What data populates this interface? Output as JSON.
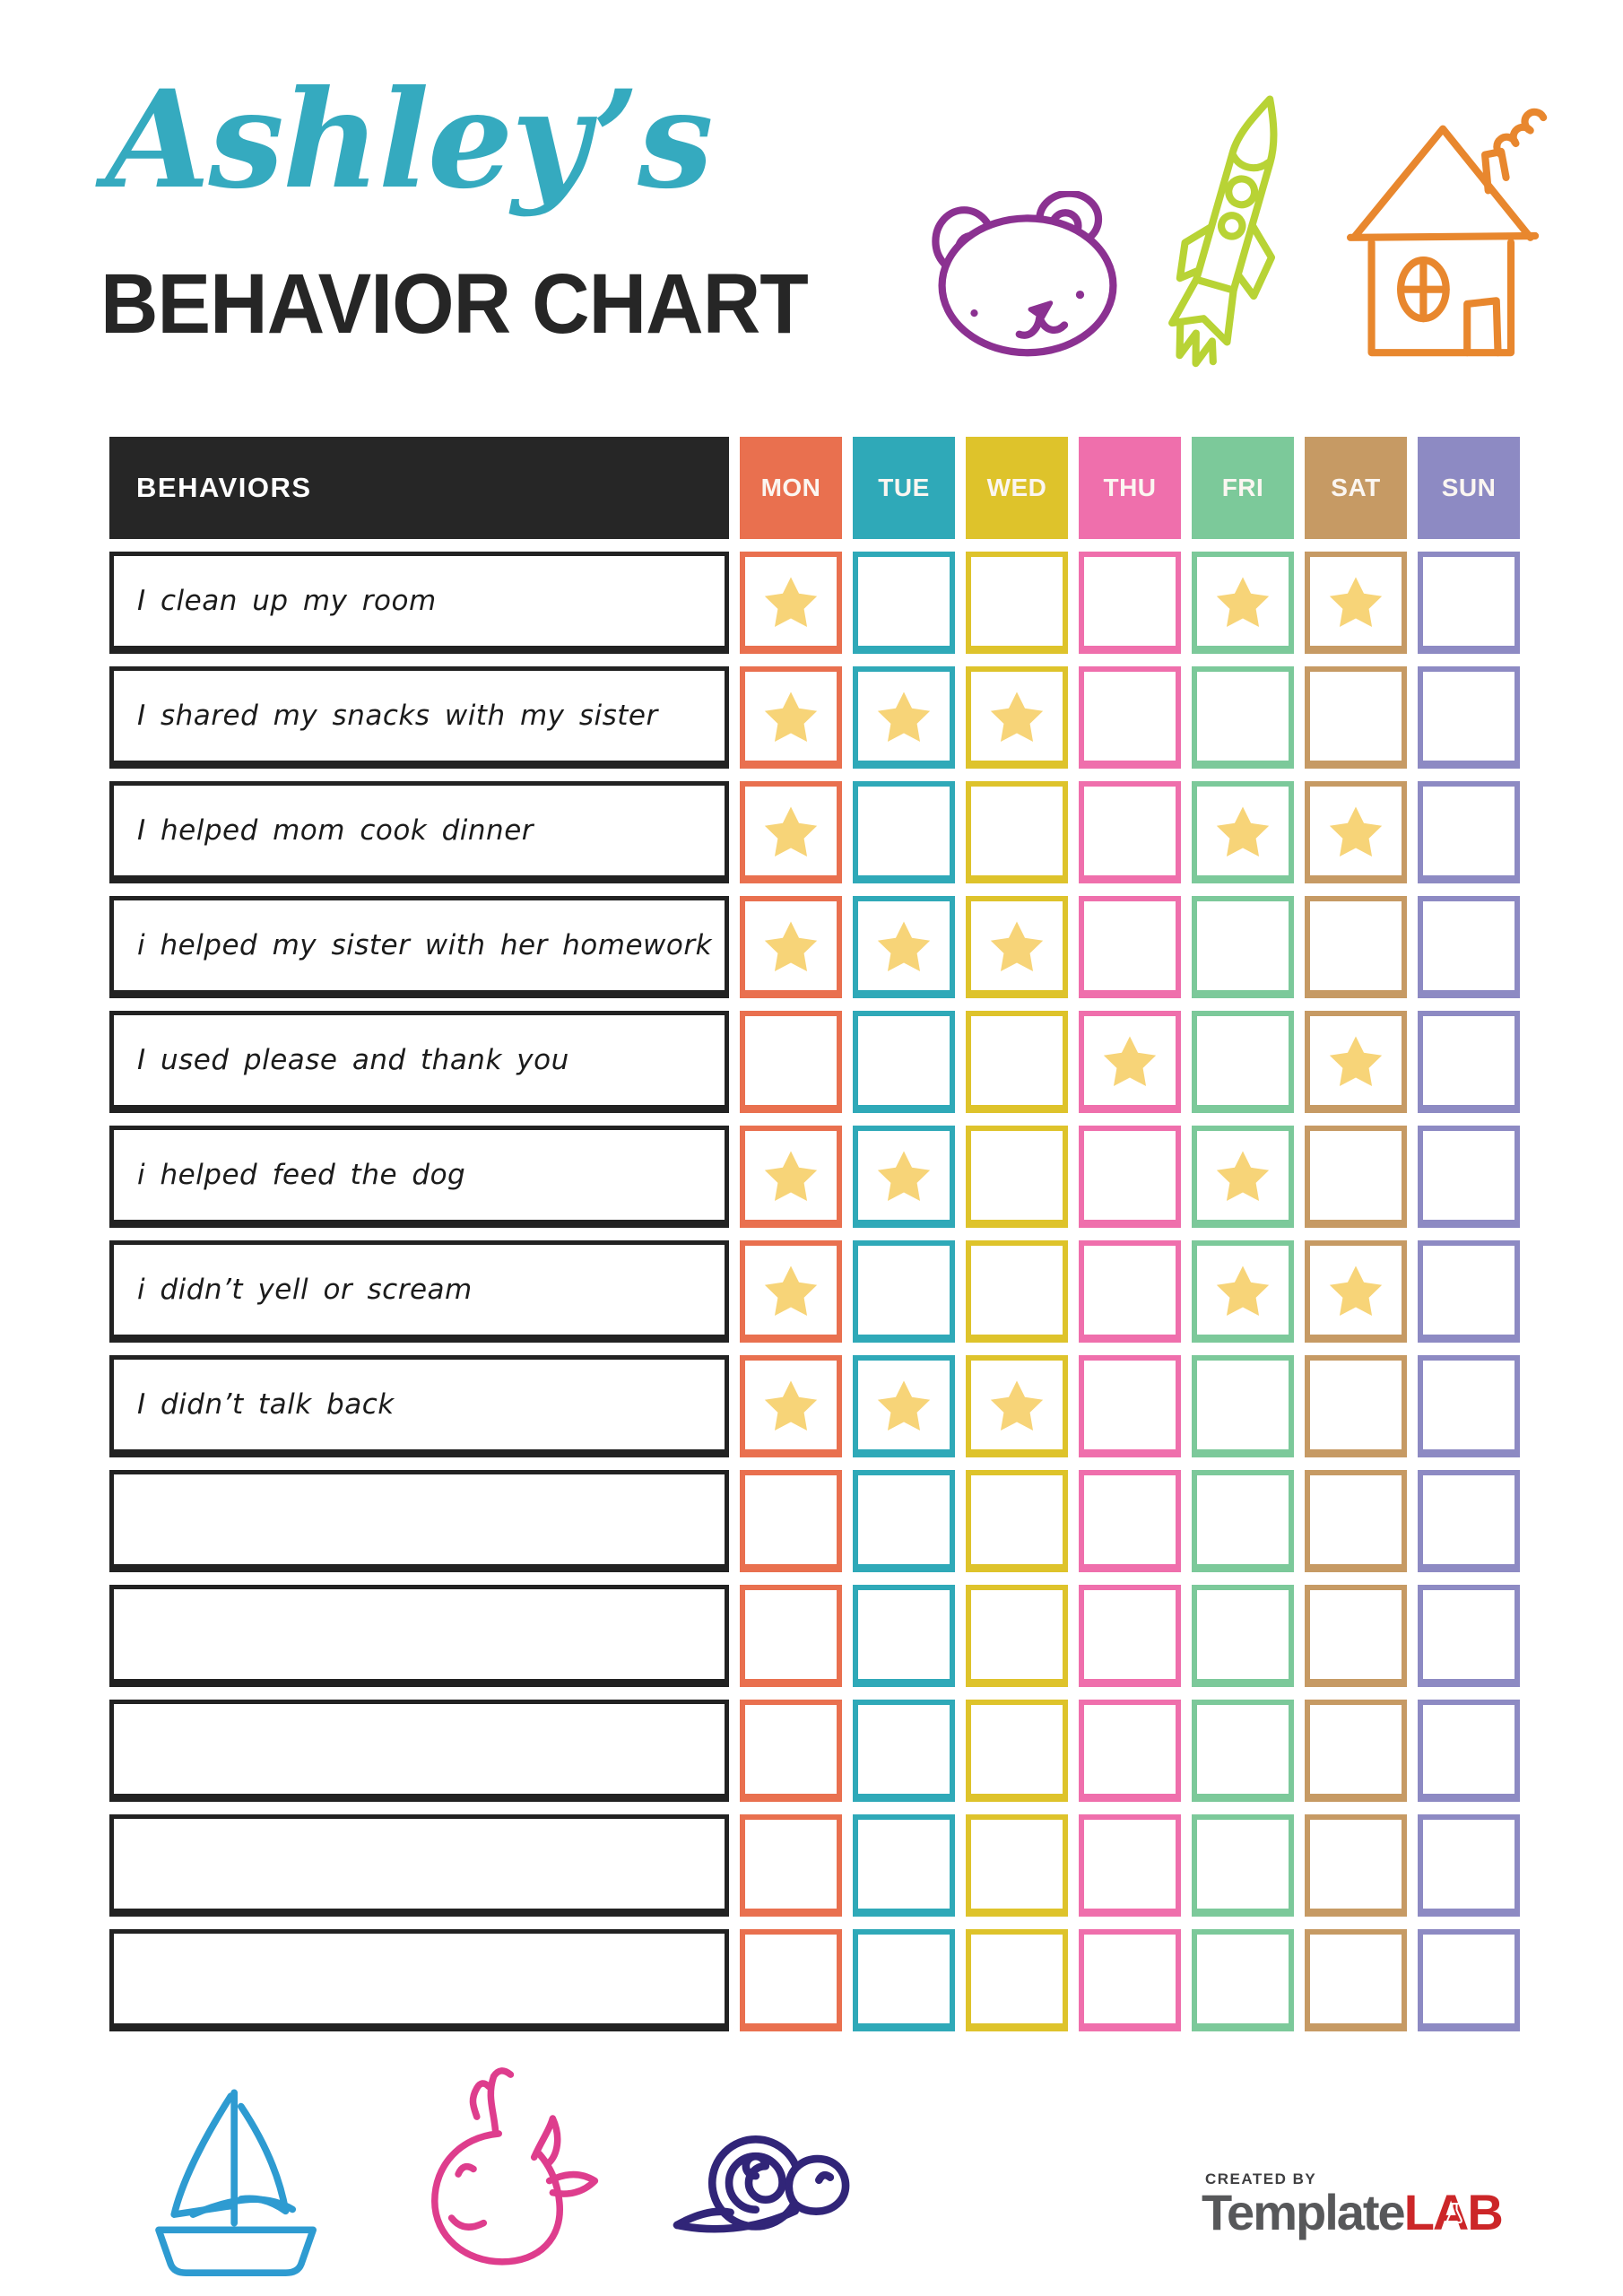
{
  "header": {
    "name_script": "Ashley’s",
    "title": "BEHAVIOR CHART"
  },
  "colors": {
    "title_accent": "#35AABF",
    "title_dark": "#262626",
    "header_bg": "#262626",
    "day_label_text": "#FBF6F1"
  },
  "doodles": {
    "bear": "#8B3191",
    "rocket": "#B8D335",
    "house": "#E8872E",
    "sailboat": "#2E9BD1",
    "whale": "#DE3D8D",
    "snail": "#312578"
  },
  "table": {
    "behaviors_header": "BEHAVIORS",
    "star_color": "#F7D478",
    "days": [
      {
        "label": "MON",
        "color": "#E9704F"
      },
      {
        "label": "TUE",
        "color": "#2FA9B8"
      },
      {
        "label": "WED",
        "color": "#DEC32B"
      },
      {
        "label": "THU",
        "color": "#EF6FAC"
      },
      {
        "label": "FRI",
        "color": "#7CC99A"
      },
      {
        "label": "SAT",
        "color": "#C69A64"
      },
      {
        "label": "SUN",
        "color": "#8D8AC3"
      }
    ],
    "rows": [
      {
        "behavior": "I clean up my room",
        "stars": [
          1,
          0,
          0,
          0,
          1,
          1,
          0
        ]
      },
      {
        "behavior": "I shared my snacks with my sister",
        "stars": [
          1,
          1,
          1,
          0,
          0,
          0,
          0
        ]
      },
      {
        "behavior": "I helped mom cook dinner",
        "stars": [
          1,
          0,
          0,
          0,
          1,
          1,
          0
        ]
      },
      {
        "behavior": "i helped my sister with her homework",
        "stars": [
          1,
          1,
          1,
          0,
          0,
          0,
          0
        ]
      },
      {
        "behavior": "I used please and thank you",
        "stars": [
          0,
          0,
          0,
          1,
          0,
          1,
          0
        ]
      },
      {
        "behavior": "i helped feed the dog",
        "stars": [
          1,
          1,
          0,
          0,
          1,
          0,
          0
        ]
      },
      {
        "behavior": "i didn’t yell or scream",
        "stars": [
          1,
          0,
          0,
          0,
          1,
          1,
          0
        ]
      },
      {
        "behavior": "I didn’t talk back",
        "stars": [
          1,
          1,
          1,
          0,
          0,
          0,
          0
        ]
      },
      {
        "behavior": "",
        "stars": [
          0,
          0,
          0,
          0,
          0,
          0,
          0
        ]
      },
      {
        "behavior": "",
        "stars": [
          0,
          0,
          0,
          0,
          0,
          0,
          0
        ]
      },
      {
        "behavior": "",
        "stars": [
          0,
          0,
          0,
          0,
          0,
          0,
          0
        ]
      },
      {
        "behavior": "",
        "stars": [
          0,
          0,
          0,
          0,
          0,
          0,
          0
        ]
      },
      {
        "behavior": "",
        "stars": [
          0,
          0,
          0,
          0,
          0,
          0,
          0
        ]
      }
    ]
  },
  "footer": {
    "created_by": "CREATED BY",
    "brand_part1": "Template",
    "brand_part2": "LAB",
    "logo_gray": "#57585A",
    "logo_red": "#CC2628"
  }
}
